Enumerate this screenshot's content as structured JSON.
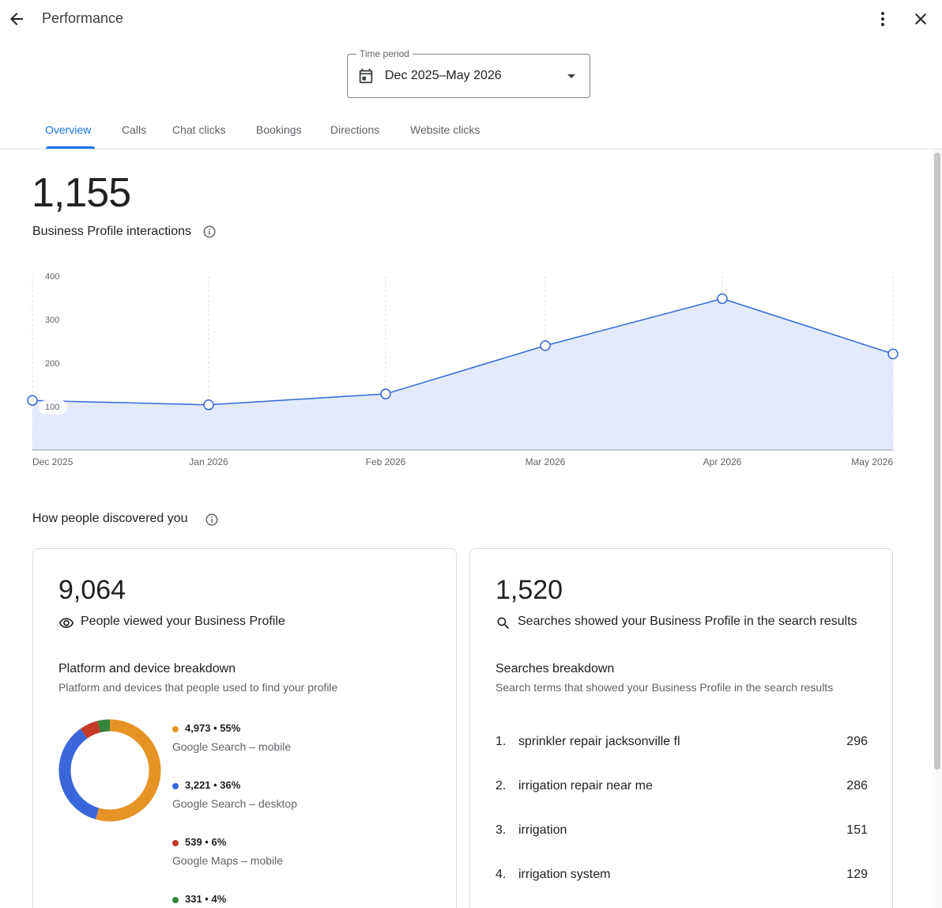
{
  "header": {
    "title": "Performance",
    "back_icon": "arrow-back-icon",
    "more_icon": "more-vert-icon",
    "close_icon": "close-icon"
  },
  "time_period": {
    "label": "Time period",
    "value": "Dec 2025–May 2026",
    "icon": "calendar-icon"
  },
  "tabs": [
    {
      "label": "Overview",
      "active": true
    },
    {
      "label": "Calls",
      "active": false
    },
    {
      "label": "Chat clicks",
      "active": false
    },
    {
      "label": "Bookings",
      "active": false
    },
    {
      "label": "Directions",
      "active": false
    },
    {
      "label": "Website clicks",
      "active": false
    }
  ],
  "interactions": {
    "total": "1,155",
    "label": "Business Profile interactions"
  },
  "chart_data": {
    "type": "area",
    "title": "",
    "xlabel": "",
    "ylabel": "",
    "x": [
      "Dec 2025",
      "Jan 2026",
      "Feb 2026",
      "Mar 2026",
      "Apr 2026",
      "May 2026"
    ],
    "series": [
      {
        "values": [
          114,
          104,
          129,
          240,
          348,
          221
        ]
      }
    ],
    "y_ticks": [
      "100",
      "200",
      "300",
      "400"
    ],
    "ylim": [
      0,
      400
    ],
    "grid": "vertical-dashed",
    "colors": {
      "line": "#3367d6",
      "fill": "#e3eafc"
    }
  },
  "discovery": {
    "title": "How people discovered you",
    "views": {
      "total": "9,064",
      "label": "People viewed your Business Profile",
      "icon": "eye-icon",
      "breakdown_title": "Platform and device breakdown",
      "breakdown_desc": "Platform and devices that people used to find your profile",
      "segments": [
        {
          "value_text": "4,973 • 55%",
          "name": "Google Search – mobile",
          "percent": 55,
          "color": "#e69326"
        },
        {
          "value_text": "3,221 • 36%",
          "name": "Google Search – desktop",
          "percent": 36,
          "color": "#3b66db"
        },
        {
          "value_text": "539 • 6%",
          "name": "Google Maps – mobile",
          "percent": 6,
          "color": "#c53929"
        },
        {
          "value_text": "331 • 4%",
          "name": "",
          "percent": 4,
          "color": "#34833b"
        }
      ]
    },
    "searches": {
      "total": "1,520",
      "label": "Searches showed your Business Profile in the search results",
      "icon": "search-icon",
      "breakdown_title": "Searches breakdown",
      "breakdown_desc": "Search terms that showed your Business Profile in the search results",
      "terms": [
        {
          "rank": "1.",
          "term": "sprinkler repair jacksonville fl",
          "count": "296"
        },
        {
          "rank": "2.",
          "term": "irrigation repair near me",
          "count": "286"
        },
        {
          "rank": "3.",
          "term": "irrigation",
          "count": "151"
        },
        {
          "rank": "4.",
          "term": "irrigation system",
          "count": "129"
        }
      ]
    }
  }
}
